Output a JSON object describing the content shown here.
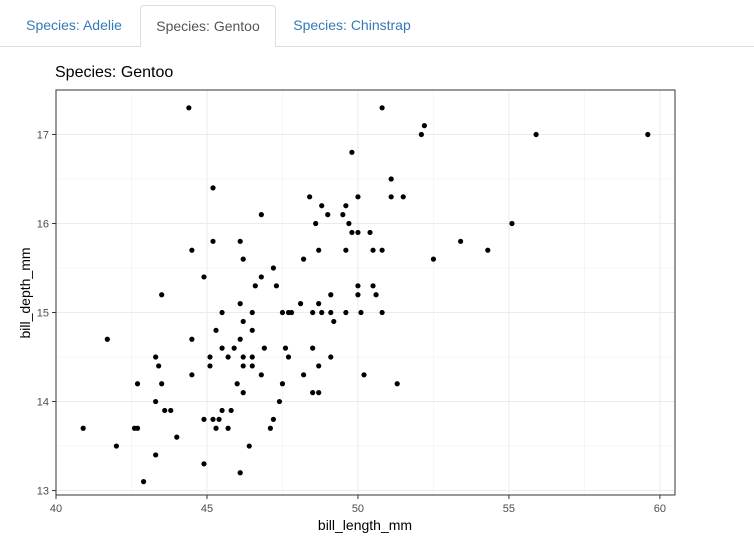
{
  "tabs": [
    {
      "label": "Species: Adelie",
      "active": false
    },
    {
      "label": "Species: Gentoo",
      "active": true
    },
    {
      "label": "Species: Chinstrap",
      "active": false
    }
  ],
  "chart_data": {
    "type": "scatter",
    "title": "Species: Gentoo",
    "xlabel": "bill_length_mm",
    "ylabel": "bill_depth_mm",
    "xlim": [
      40.0,
      60.5
    ],
    "ylim": [
      12.95,
      17.5
    ],
    "xticks": [
      40,
      45,
      50,
      55,
      60
    ],
    "yticks": [
      13,
      14,
      15,
      16,
      17
    ],
    "grid": true,
    "point_color": "#000000",
    "points": [
      [
        44.4,
        17.3
      ],
      [
        50.8,
        17.3
      ],
      [
        52.2,
        17.1
      ],
      [
        52.1,
        17.0
      ],
      [
        55.9,
        17.0
      ],
      [
        59.6,
        17.0
      ],
      [
        49.8,
        16.8
      ],
      [
        51.1,
        16.5
      ],
      [
        45.2,
        16.4
      ],
      [
        48.4,
        16.3
      ],
      [
        50.0,
        16.3
      ],
      [
        51.1,
        16.3
      ],
      [
        51.5,
        16.3
      ],
      [
        48.8,
        16.2
      ],
      [
        49.6,
        16.2
      ],
      [
        49.0,
        16.1
      ],
      [
        46.8,
        16.1
      ],
      [
        49.5,
        16.1
      ],
      [
        49.7,
        16.0
      ],
      [
        48.6,
        16.0
      ],
      [
        55.1,
        16.0
      ],
      [
        50.4,
        15.9
      ],
      [
        49.8,
        15.9
      ],
      [
        50.0,
        15.9
      ],
      [
        45.2,
        15.8
      ],
      [
        46.1,
        15.8
      ],
      [
        53.4,
        15.8
      ],
      [
        49.6,
        15.7
      ],
      [
        44.5,
        15.7
      ],
      [
        48.7,
        15.7
      ],
      [
        50.5,
        15.7
      ],
      [
        50.8,
        15.7
      ],
      [
        54.3,
        15.7
      ],
      [
        46.2,
        15.6
      ],
      [
        48.2,
        15.6
      ],
      [
        52.5,
        15.6
      ],
      [
        47.2,
        15.5
      ],
      [
        46.8,
        15.4
      ],
      [
        44.9,
        15.4
      ],
      [
        46.6,
        15.3
      ],
      [
        47.3,
        15.3
      ],
      [
        50.0,
        15.3
      ],
      [
        50.5,
        15.3
      ],
      [
        50.0,
        15.2
      ],
      [
        43.5,
        15.2
      ],
      [
        49.1,
        15.2
      ],
      [
        50.6,
        15.2
      ],
      [
        46.1,
        15.1
      ],
      [
        48.1,
        15.1
      ],
      [
        48.7,
        15.1
      ],
      [
        48.8,
        15.0
      ],
      [
        46.5,
        15.0
      ],
      [
        47.5,
        15.0
      ],
      [
        47.7,
        15.0
      ],
      [
        47.8,
        15.0
      ],
      [
        45.5,
        15.0
      ],
      [
        48.5,
        15.0
      ],
      [
        49.1,
        15.0
      ],
      [
        49.6,
        15.0
      ],
      [
        50.1,
        15.0
      ],
      [
        50.8,
        15.0
      ],
      [
        46.2,
        14.9
      ],
      [
        49.2,
        14.9
      ],
      [
        45.3,
        14.8
      ],
      [
        46.5,
        14.8
      ],
      [
        41.7,
        14.7
      ],
      [
        44.5,
        14.7
      ],
      [
        46.1,
        14.7
      ],
      [
        47.6,
        14.6
      ],
      [
        45.9,
        14.6
      ],
      [
        45.5,
        14.6
      ],
      [
        48.5,
        14.6
      ],
      [
        46.9,
        14.6
      ],
      [
        45.1,
        14.5
      ],
      [
        43.3,
        14.5
      ],
      [
        45.7,
        14.5
      ],
      [
        46.2,
        14.5
      ],
      [
        46.5,
        14.5
      ],
      [
        47.7,
        14.5
      ],
      [
        49.1,
        14.5
      ],
      [
        43.4,
        14.4
      ],
      [
        45.1,
        14.4
      ],
      [
        46.2,
        14.4
      ],
      [
        46.5,
        14.4
      ],
      [
        48.7,
        14.4
      ],
      [
        44.5,
        14.3
      ],
      [
        46.8,
        14.3
      ],
      [
        48.2,
        14.3
      ],
      [
        50.2,
        14.3
      ],
      [
        42.7,
        14.2
      ],
      [
        43.5,
        14.2
      ],
      [
        46.0,
        14.2
      ],
      [
        47.5,
        14.2
      ],
      [
        51.3,
        14.2
      ],
      [
        48.5,
        14.1
      ],
      [
        48.7,
        14.1
      ],
      [
        46.2,
        14.1
      ],
      [
        43.3,
        14.0
      ],
      [
        47.4,
        14.0
      ],
      [
        43.6,
        13.9
      ],
      [
        43.8,
        13.9
      ],
      [
        45.5,
        13.9
      ],
      [
        45.8,
        13.9
      ],
      [
        47.2,
        13.8
      ],
      [
        44.9,
        13.8
      ],
      [
        45.2,
        13.8
      ],
      [
        45.4,
        13.8
      ],
      [
        40.9,
        13.7
      ],
      [
        42.6,
        13.7
      ],
      [
        42.7,
        13.7
      ],
      [
        45.3,
        13.7
      ],
      [
        45.7,
        13.7
      ],
      [
        47.1,
        13.7
      ],
      [
        44.0,
        13.6
      ],
      [
        42.0,
        13.5
      ],
      [
        46.4,
        13.5
      ],
      [
        43.3,
        13.4
      ],
      [
        44.9,
        13.3
      ],
      [
        46.1,
        13.2
      ],
      [
        42.9,
        13.1
      ]
    ]
  }
}
